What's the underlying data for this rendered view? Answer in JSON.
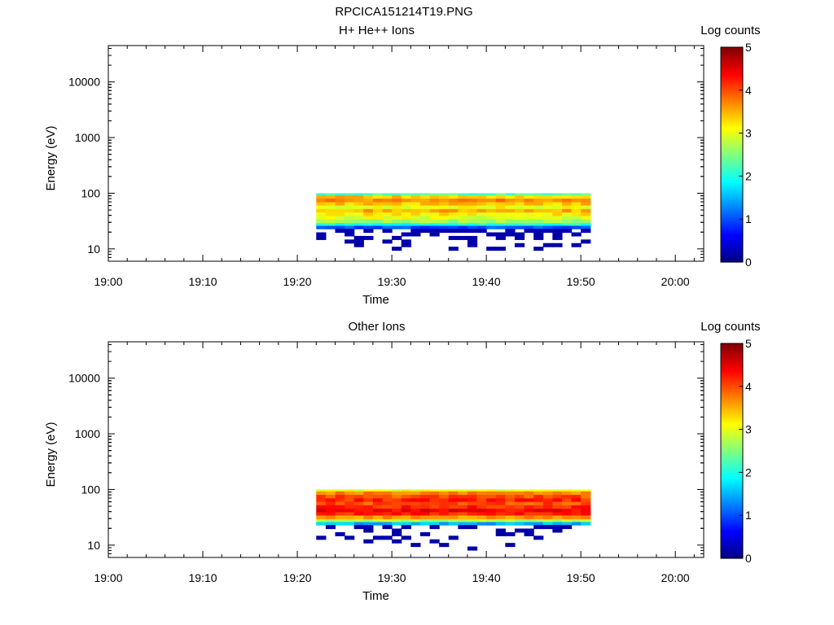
{
  "page_title": "RPCICA151214T19.PNG",
  "chart_data": [
    {
      "type": "heatmap",
      "title": "H+ He++ Ions",
      "xlabel": "Time",
      "ylabel": "Energy (eV)",
      "x_ticks": [
        "19:00",
        "19:10",
        "19:20",
        "19:30",
        "19:40",
        "19:50",
        "20:00"
      ],
      "x_range_minutes": [
        0,
        63
      ],
      "y_scale": "log",
      "y_range": [
        6,
        45000
      ],
      "y_ticks": [
        "10",
        "100",
        "1000",
        "10000"
      ],
      "colorbar": {
        "label": "Log counts",
        "range": [
          0,
          5
        ],
        "ticks": [
          "0",
          "1",
          "2",
          "3",
          "4",
          "5"
        ]
      },
      "data_time_start": "19:22",
      "data_time_end": "19:51",
      "bands": [
        {
          "e_lo": 92,
          "e_hi": 100,
          "log_counts": 2.3
        },
        {
          "e_lo": 80,
          "e_hi": 92,
          "log_counts": 3.4
        },
        {
          "e_lo": 69,
          "e_hi": 80,
          "log_counts": 3.7
        },
        {
          "e_lo": 60,
          "e_hi": 69,
          "log_counts": 3.4
        },
        {
          "e_lo": 52,
          "e_hi": 60,
          "log_counts": 3.1
        },
        {
          "e_lo": 45,
          "e_hi": 52,
          "log_counts": 3.5
        },
        {
          "e_lo": 39,
          "e_hi": 45,
          "log_counts": 3.2
        },
        {
          "e_lo": 34,
          "e_hi": 39,
          "log_counts": 3.0
        },
        {
          "e_lo": 29,
          "e_hi": 34,
          "log_counts": 2.6
        },
        {
          "e_lo": 26,
          "e_hi": 29,
          "log_counts": 2.0
        },
        {
          "e_lo": 23,
          "e_hi": 26,
          "log_counts": 1.0
        }
      ],
      "low_counts_below_eV": 23,
      "low_counts_value": 0.2
    },
    {
      "type": "heatmap",
      "title": "Other Ions",
      "xlabel": "Time",
      "ylabel": "Energy (eV)",
      "x_ticks": [
        "19:00",
        "19:10",
        "19:20",
        "19:30",
        "19:40",
        "19:50",
        "20:00"
      ],
      "x_range_minutes": [
        0,
        63
      ],
      "y_scale": "log",
      "y_range": [
        6,
        45000
      ],
      "y_ticks": [
        "10",
        "100",
        "1000",
        "10000"
      ],
      "colorbar": {
        "label": "Log counts",
        "range": [
          0,
          5
        ],
        "ticks": [
          "0",
          "1",
          "2",
          "3",
          "4",
          "5"
        ]
      },
      "data_time_start": "19:22",
      "data_time_end": "19:51",
      "bands": [
        {
          "e_lo": 92,
          "e_hi": 100,
          "log_counts": 3.1
        },
        {
          "e_lo": 80,
          "e_hi": 92,
          "log_counts": 3.7
        },
        {
          "e_lo": 69,
          "e_hi": 80,
          "log_counts": 4.0
        },
        {
          "e_lo": 60,
          "e_hi": 69,
          "log_counts": 4.2
        },
        {
          "e_lo": 52,
          "e_hi": 60,
          "log_counts": 4.0
        },
        {
          "e_lo": 45,
          "e_hi": 52,
          "log_counts": 4.2
        },
        {
          "e_lo": 39,
          "e_hi": 45,
          "log_counts": 4.4
        },
        {
          "e_lo": 34,
          "e_hi": 39,
          "log_counts": 4.2
        },
        {
          "e_lo": 29,
          "e_hi": 34,
          "log_counts": 3.6
        },
        {
          "e_lo": 26,
          "e_hi": 29,
          "log_counts": 2.7
        },
        {
          "e_lo": 23,
          "e_hi": 26,
          "log_counts": 1.5
        }
      ],
      "low_counts_below_eV": 23,
      "low_counts_value": 0.2
    }
  ]
}
